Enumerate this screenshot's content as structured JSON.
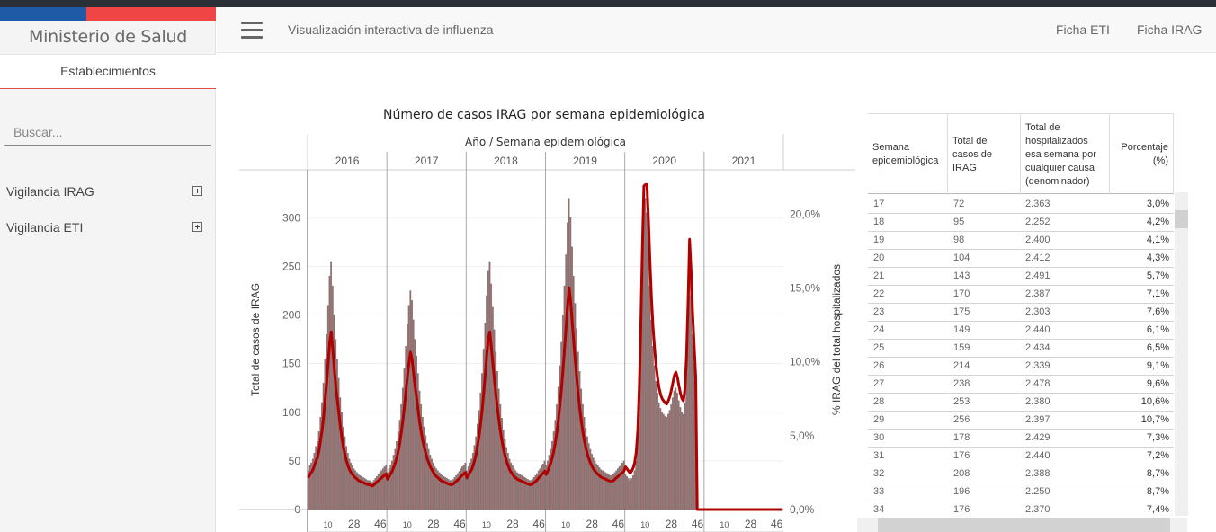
{
  "sidebar": {
    "brand": "Ministerio de Salud",
    "section": "Establecimientos",
    "search_placeholder": "Buscar...",
    "items": [
      {
        "label": "Vigilancia IRAG"
      },
      {
        "label": "Vigilancia ETI"
      }
    ]
  },
  "header": {
    "title": "Visualización interactiva de influenza",
    "links": [
      "Ficha ETI",
      "Ficha IRAG"
    ]
  },
  "colors": {
    "bars": "#7a7a7a",
    "bar_fill": "#9e6a6a",
    "line": "#b00000",
    "flag_blue": "#1f5aa6",
    "flag_red": "#ef4545"
  },
  "chart_data": {
    "type": "bar",
    "title": "Número de casos IRAG por semana epidemiológica",
    "xlabel_top": "Año / Semana epidemiológica",
    "ylabel_left": "Total de casos de IRAG",
    "ylabel_right": "% IRAG del total hospitalizados",
    "years": [
      "2016",
      "2017",
      "2018",
      "2019",
      "2020",
      "2021"
    ],
    "week_ticks": [
      "10",
      "28",
      "46"
    ],
    "yticks_left": [
      "0",
      "50",
      "100",
      "150",
      "200",
      "250",
      "300"
    ],
    "yticks_right": [
      "0,0%",
      "5,0%",
      "10,0%",
      "15,0%",
      "20,0%"
    ],
    "ylim_left": [
      0,
      340
    ],
    "ylim_right": [
      0,
      0.23
    ],
    "series": [
      {
        "values_per_year": [
          [
            40,
            45,
            48,
            52,
            58,
            65,
            70,
            80,
            95,
            110,
            130,
            155,
            180,
            210,
            240,
            255,
            230,
            200,
            175,
            155,
            135,
            115,
            100,
            85,
            75,
            65,
            58,
            52,
            48,
            45,
            42,
            40,
            38,
            36,
            35,
            34,
            33,
            32,
            31,
            30,
            30,
            29,
            28,
            30,
            32,
            34,
            36,
            38,
            40,
            42,
            44,
            46
          ],
          [
            38,
            42,
            46,
            50,
            56,
            62,
            70,
            80,
            92,
            108,
            125,
            145,
            168,
            190,
            210,
            225,
            215,
            195,
            175,
            158,
            140,
            122,
            108,
            95,
            85,
            76,
            68,
            62,
            56,
            52,
            48,
            44,
            42,
            40,
            38,
            36,
            35,
            34,
            33,
            32,
            31,
            30,
            30,
            31,
            33,
            35,
            37,
            39,
            42,
            44,
            46,
            48
          ],
          [
            40,
            44,
            48,
            52,
            58,
            66,
            75,
            88,
            102,
            120,
            140,
            165,
            192,
            220,
            245,
            255,
            232,
            208,
            185,
            162,
            142,
            124,
            108,
            94,
            82,
            72,
            64,
            58,
            52,
            48,
            45,
            42,
            40,
            38,
            37,
            36,
            35,
            34,
            33,
            32,
            31,
            30,
            30,
            31,
            33,
            35,
            37,
            40,
            42,
            45,
            47,
            50
          ],
          [
            45,
            50,
            56,
            62,
            70,
            80,
            92,
            108,
            126,
            148,
            172,
            200,
            230,
            262,
            295,
            320,
            300,
            270,
            240,
            212,
            186,
            162,
            142,
            124,
            108,
            95,
            84,
            75,
            68,
            62,
            57,
            53,
            50,
            47,
            45,
            43,
            41,
            40,
            39,
            38,
            37,
            36,
            35,
            35,
            36,
            38,
            40,
            42,
            44,
            46,
            48,
            50
          ],
          [
            36,
            34,
            32,
            30,
            32,
            35,
            40,
            50,
            70,
            110,
            170,
            240,
            300,
            320,
            305,
            270,
            230,
            195,
            168,
            148,
            132,
            120,
            110,
            104,
            100,
            98,
            96,
            95,
            98,
            102,
            108,
            115,
            122,
            125,
            120,
            112,
            105,
            100,
            98,
            110,
            140,
            190,
            250,
            220,
            180,
            150,
            120,
            0,
            0,
            0,
            0,
            0
          ],
          [
            0,
            0,
            0,
            0,
            0,
            0,
            0,
            0,
            0,
            0,
            0,
            0,
            0,
            0,
            0,
            0,
            0,
            0,
            0,
            0,
            0,
            0,
            0,
            0,
            0,
            0,
            0,
            0,
            0,
            0,
            0,
            0,
            0,
            0,
            0,
            0,
            0,
            0,
            0,
            0,
            0,
            0,
            0,
            0,
            0,
            0,
            0,
            0,
            0,
            0,
            0,
            0
          ]
        ]
      }
    ]
  },
  "table": {
    "headers": [
      "Semana epidemiológica",
      "Total de casos de IRAG",
      "Total de hospitalizados esa semana por cualquier causa (denominador)",
      "Porcentaje (%)"
    ],
    "rows": [
      [
        "17",
        "72",
        "2.363",
        "3,0%"
      ],
      [
        "18",
        "95",
        "2.252",
        "4,2%"
      ],
      [
        "19",
        "98",
        "2.400",
        "4,1%"
      ],
      [
        "20",
        "104",
        "2.412",
        "4,3%"
      ],
      [
        "21",
        "143",
        "2.491",
        "5,7%"
      ],
      [
        "22",
        "170",
        "2.387",
        "7,1%"
      ],
      [
        "23",
        "175",
        "2.303",
        "7,6%"
      ],
      [
        "24",
        "149",
        "2.440",
        "6,1%"
      ],
      [
        "25",
        "159",
        "2.434",
        "6,5%"
      ],
      [
        "26",
        "214",
        "2.339",
        "9,1%"
      ],
      [
        "27",
        "238",
        "2.478",
        "9,6%"
      ],
      [
        "28",
        "253",
        "2.380",
        "10,6%"
      ],
      [
        "29",
        "256",
        "2.397",
        "10,7%"
      ],
      [
        "30",
        "178",
        "2.429",
        "7,3%"
      ],
      [
        "31",
        "176",
        "2.440",
        "7,2%"
      ],
      [
        "32",
        "208",
        "2.388",
        "8,7%"
      ],
      [
        "33",
        "196",
        "2.250",
        "8,7%"
      ],
      [
        "34",
        "176",
        "2.370",
        "7,4%"
      ]
    ]
  }
}
